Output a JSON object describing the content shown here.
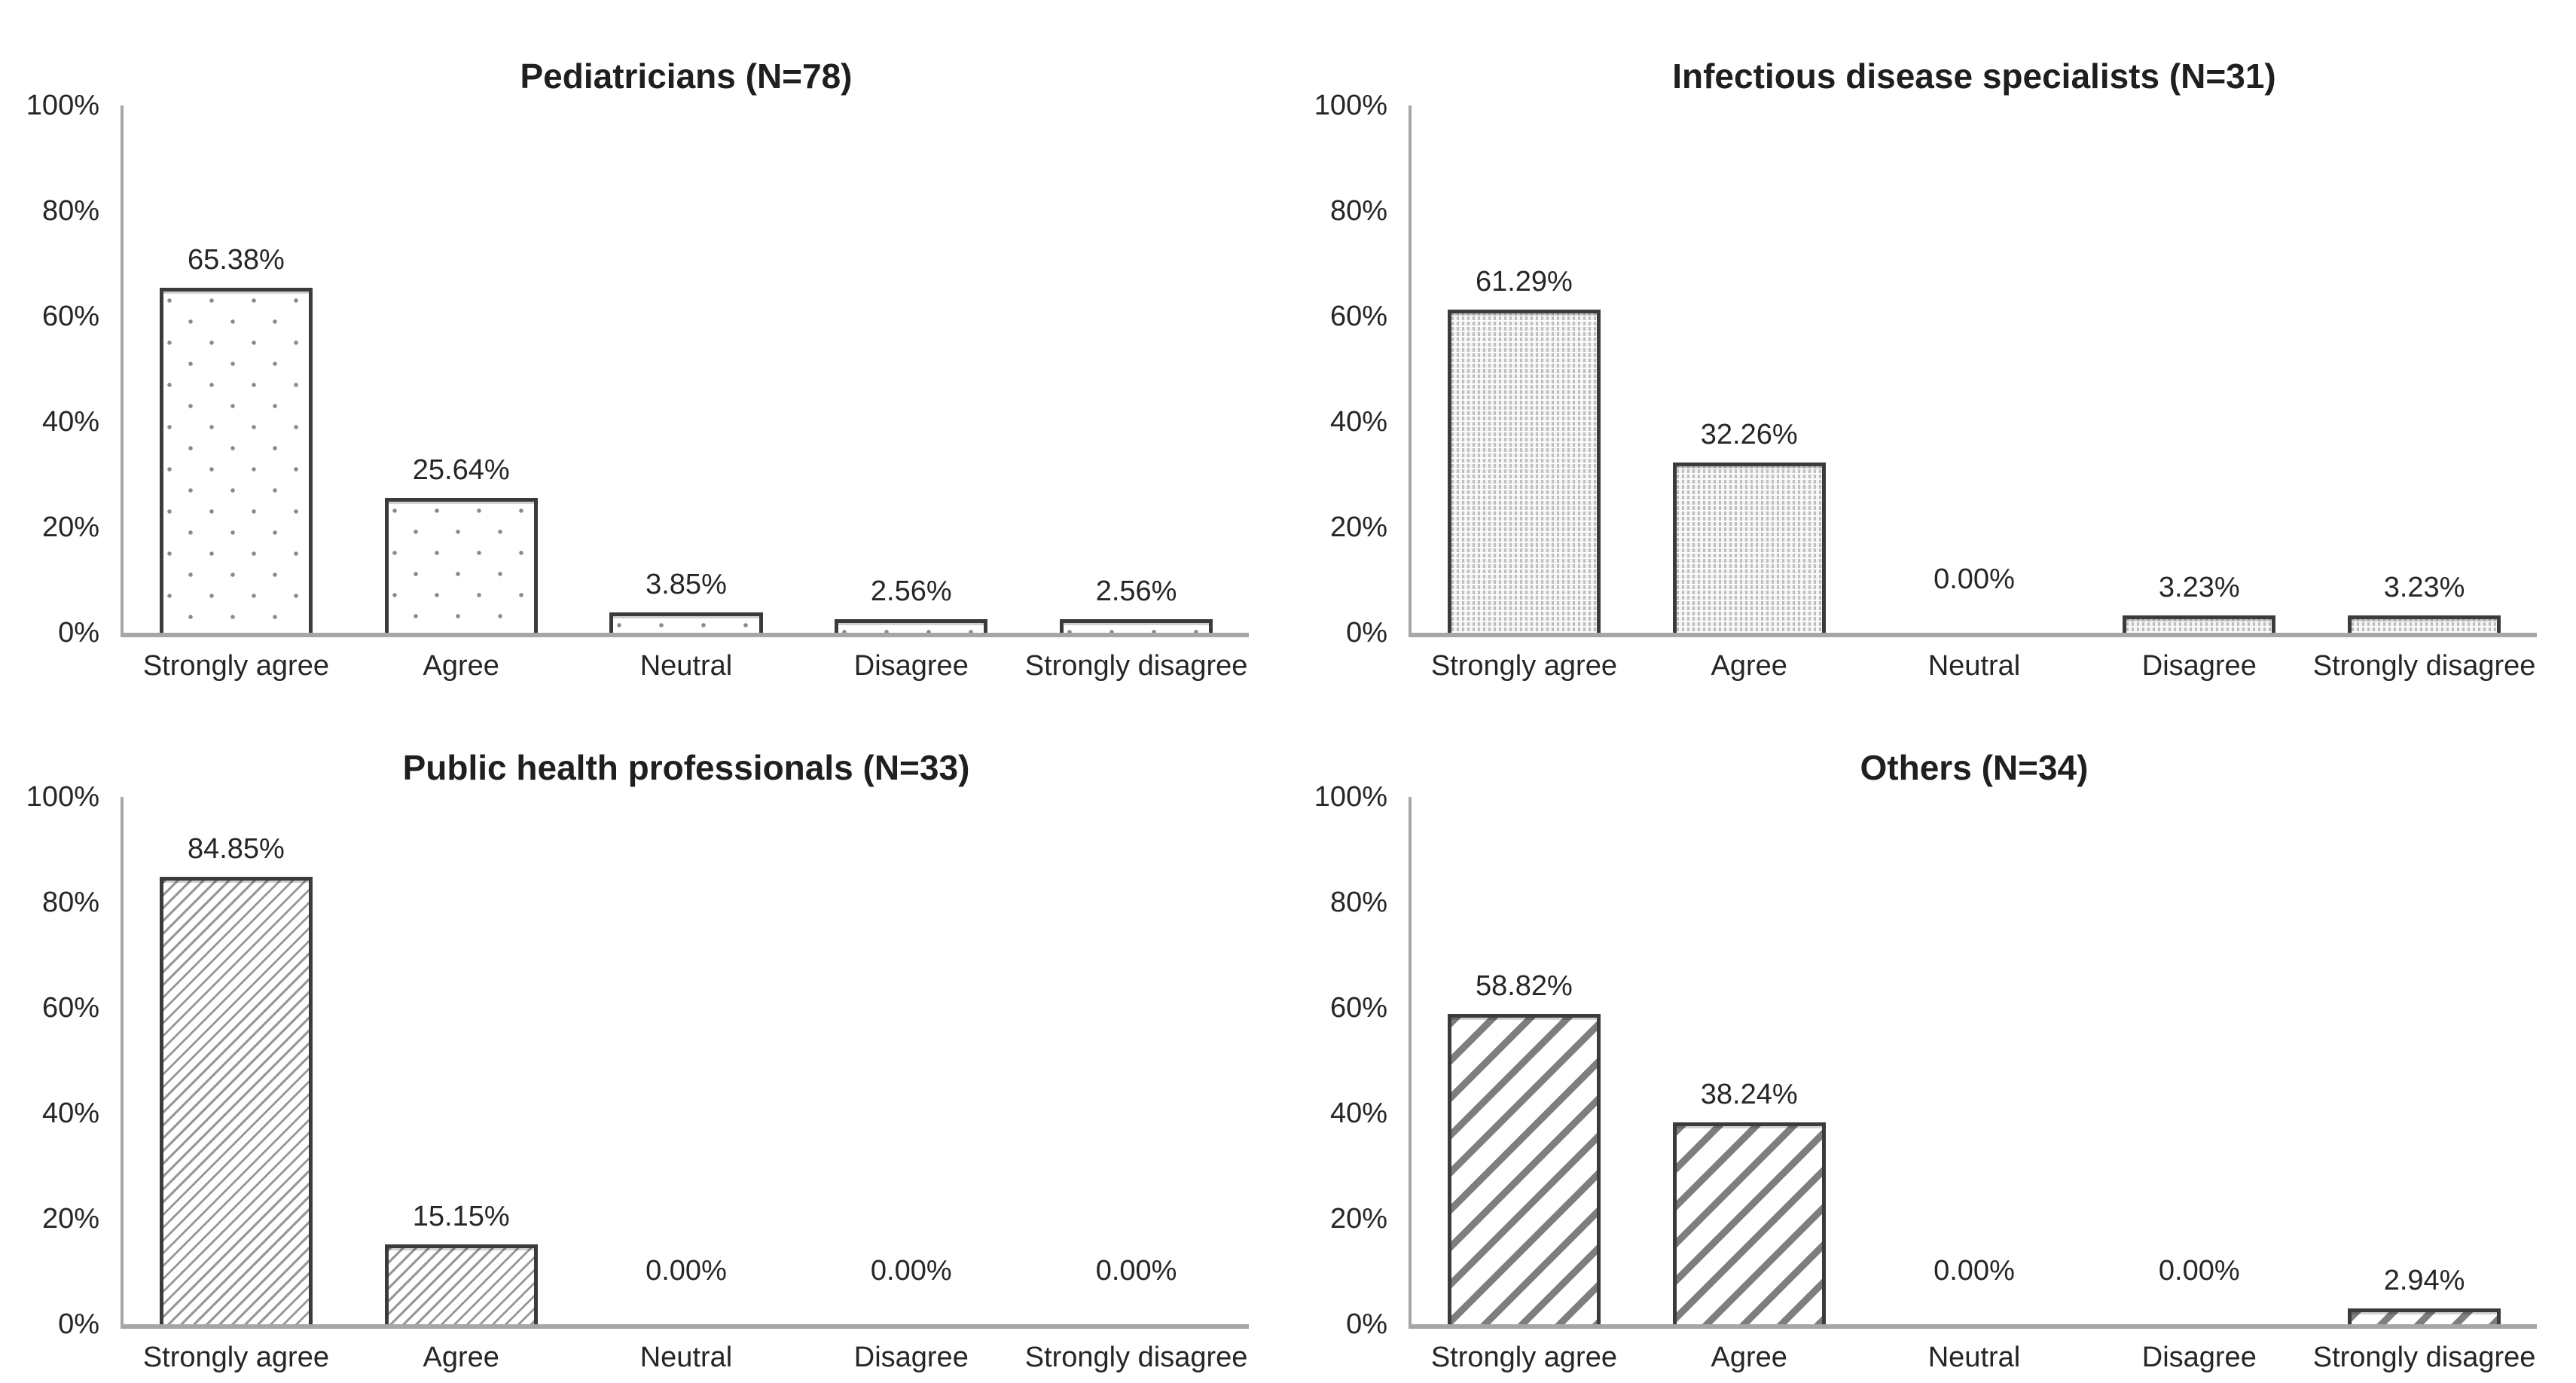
{
  "colors": {
    "background": "#ffffff",
    "text": "#262626",
    "title": "#1f1f1f",
    "axis": "#a6a6a6",
    "bar_border": "#3b3b3b"
  },
  "chart_data": [
    {
      "type": "bar",
      "title": "Pediatricians (N=78)",
      "pattern": "dots",
      "pattern_desc": "sparse gray dot fill",
      "categories": [
        "Strongly agree",
        "Agree",
        "Neutral",
        "Disagree",
        "Strongly disagree"
      ],
      "values": [
        65.38,
        25.64,
        3.85,
        2.56,
        2.56
      ],
      "value_labels": [
        "65.38%",
        "25.64%",
        "3.85%",
        "2.56%",
        "2.56%"
      ],
      "yticks": [
        "100%",
        "80%",
        "60%",
        "40%",
        "20%",
        "0%"
      ],
      "ylim": [
        0,
        100
      ],
      "grid": false,
      "legend_position": "none"
    },
    {
      "type": "bar",
      "title": "Infectious disease specialists (N=31)",
      "pattern": "vlines",
      "pattern_desc": "dense vertical dotted-line fill",
      "categories": [
        "Strongly agree",
        "Agree",
        "Neutral",
        "Disagree",
        "Strongly disagree"
      ],
      "values": [
        61.29,
        32.26,
        0.0,
        3.23,
        3.23
      ],
      "value_labels": [
        "61.29%",
        "32.26%",
        "0.00%",
        "3.23%",
        "3.23%"
      ],
      "yticks": [
        "100%",
        "80%",
        "60%",
        "40%",
        "20%",
        "0%"
      ],
      "ylim": [
        0,
        100
      ],
      "grid": false,
      "legend_position": "none"
    },
    {
      "type": "bar",
      "title": "Public health professionals (N=33)",
      "pattern": "hatch-fine",
      "pattern_desc": "fine diagonal hatch fill",
      "categories": [
        "Strongly agree",
        "Agree",
        "Neutral",
        "Disagree",
        "Strongly disagree"
      ],
      "values": [
        84.85,
        15.15,
        0.0,
        0.0,
        0.0
      ],
      "value_labels": [
        "84.85%",
        "15.15%",
        "0.00%",
        "0.00%",
        "0.00%"
      ],
      "yticks": [
        "100%",
        "80%",
        "60%",
        "40%",
        "20%",
        "0%"
      ],
      "ylim": [
        0,
        100
      ],
      "grid": false,
      "legend_position": "none"
    },
    {
      "type": "bar",
      "title": "Others (N=34)",
      "pattern": "hatch-wide",
      "pattern_desc": "wide diagonal hatch fill",
      "categories": [
        "Strongly agree",
        "Agree",
        "Neutral",
        "Disagree",
        "Strongly disagree"
      ],
      "values": [
        58.82,
        38.24,
        0.0,
        0.0,
        2.94
      ],
      "value_labels": [
        "58.82%",
        "38.24%",
        "0.00%",
        "0.00%",
        "2.94%"
      ],
      "yticks": [
        "100%",
        "80%",
        "60%",
        "40%",
        "20%",
        "0%"
      ],
      "ylim": [
        0,
        100
      ],
      "grid": false,
      "legend_position": "none"
    }
  ]
}
